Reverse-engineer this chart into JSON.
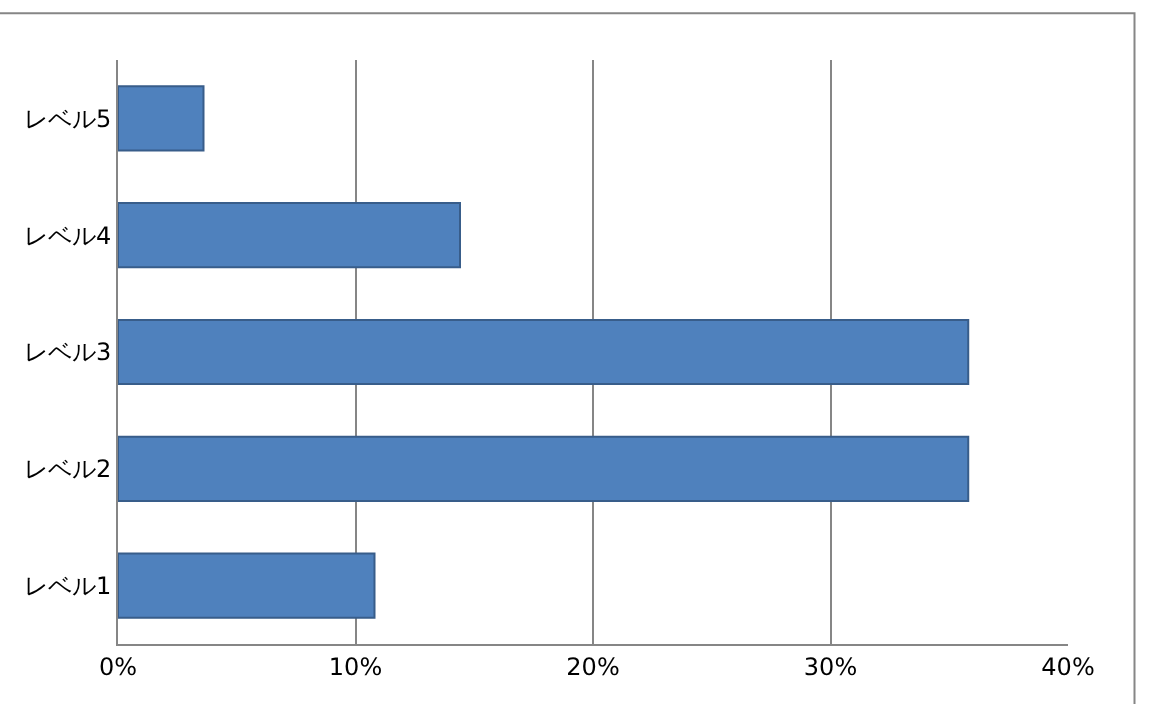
{
  "chart_data": {
    "type": "bar",
    "orientation": "horizontal",
    "categories": [
      "レベル5",
      "レベル4",
      "レベル3",
      "レベル2",
      "レベル1"
    ],
    "values": [
      3.6,
      14.4,
      35.8,
      35.8,
      10.8
    ],
    "color": "#4f81bd",
    "xlim": [
      0,
      40
    ],
    "xticks": [
      {
        "value": 0,
        "label": "0%"
      },
      {
        "value": 10,
        "label": "10%"
      },
      {
        "value": 20,
        "label": "20%"
      },
      {
        "value": 30,
        "label": "30%"
      },
      {
        "value": 40,
        "label": "40%"
      }
    ],
    "grid": "x",
    "legend": false
  }
}
